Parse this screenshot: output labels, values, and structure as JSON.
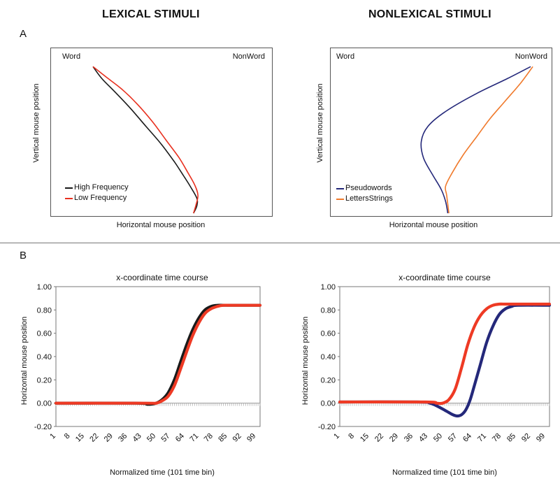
{
  "headers": {
    "left": "LEXICAL STIMULI",
    "right": "NONLEXICAL STIMULI"
  },
  "panel_labels": {
    "a": "A",
    "b": "B"
  },
  "colors": {
    "black": "#1a1a1a",
    "red": "#e8301f",
    "navy": "#24287a",
    "orange": "#f07a2c",
    "red_thick": "#ee3a24"
  },
  "chart_data": [
    {
      "type": "line",
      "corner_left": "Word",
      "corner_right": "NonWord",
      "xlabel": "Horizontal mouse position",
      "ylabel": "Vertical mouse position",
      "axes_visible": false,
      "series": [
        {
          "name": "High Frequency",
          "color": "#1a1a1a",
          "points": [
            [
              0.19,
              0.02
            ],
            [
              0.23,
              0.1
            ],
            [
              0.29,
              0.19
            ],
            [
              0.36,
              0.3
            ],
            [
              0.43,
              0.42
            ],
            [
              0.5,
              0.54
            ],
            [
              0.56,
              0.66
            ],
            [
              0.6,
              0.75
            ],
            [
              0.63,
              0.82
            ],
            [
              0.66,
              0.9
            ],
            [
              0.66,
              0.95
            ],
            [
              0.645,
              1.0
            ]
          ]
        },
        {
          "name": "Low Frequency",
          "color": "#e8301f",
          "points": [
            [
              0.19,
              0.02
            ],
            [
              0.25,
              0.09
            ],
            [
              0.32,
              0.17
            ],
            [
              0.39,
              0.27
            ],
            [
              0.46,
              0.39
            ],
            [
              0.52,
              0.51
            ],
            [
              0.58,
              0.63
            ],
            [
              0.62,
              0.73
            ],
            [
              0.65,
              0.81
            ],
            [
              0.665,
              0.88
            ],
            [
              0.655,
              0.95
            ],
            [
              0.645,
              1.0
            ]
          ]
        }
      ]
    },
    {
      "type": "line",
      "corner_left": "Word",
      "corner_right": "NonWord",
      "xlabel": "Horizontal mouse position",
      "ylabel": "Vertical mouse position",
      "axes_visible": false,
      "series": [
        {
          "name": "Pseudowords",
          "color": "#24287a",
          "points": [
            [
              0.905,
              0.02
            ],
            [
              0.8,
              0.1
            ],
            [
              0.66,
              0.2
            ],
            [
              0.52,
              0.32
            ],
            [
              0.44,
              0.42
            ],
            [
              0.41,
              0.52
            ],
            [
              0.42,
              0.63
            ],
            [
              0.46,
              0.74
            ],
            [
              0.5,
              0.84
            ],
            [
              0.52,
              0.92
            ],
            [
              0.53,
              1.0
            ]
          ]
        },
        {
          "name": "LettersStrings",
          "color": "#f07a2c",
          "points": [
            [
              0.915,
              0.02
            ],
            [
              0.86,
              0.13
            ],
            [
              0.79,
              0.25
            ],
            [
              0.72,
              0.37
            ],
            [
              0.66,
              0.49
            ],
            [
              0.6,
              0.61
            ],
            [
              0.55,
              0.73
            ],
            [
              0.52,
              0.82
            ],
            [
              0.525,
              0.88
            ],
            [
              0.535,
              1.0
            ]
          ]
        }
      ]
    },
    {
      "type": "line",
      "title": "x-coordinate time course",
      "xlabel": "Normalized time (101 time  bin)",
      "ylabel": "Horizontal mouse position",
      "ylim": [
        -0.2,
        1.0
      ],
      "xlim": [
        1,
        101
      ],
      "yticks": [
        "1.00",
        "0.80",
        "0.60",
        "0.40",
        "0.20",
        "0.00",
        "-0.20"
      ],
      "xticks": [
        "1",
        "8",
        "15",
        "22",
        "29",
        "36",
        "43",
        "50",
        "57",
        "64",
        "71",
        "78",
        "85",
        "92",
        "99"
      ],
      "series": [
        {
          "color": "#1a1a1a",
          "x": [
            1,
            40,
            46,
            50,
            53,
            56,
            59,
            62,
            65,
            68,
            71,
            74,
            77,
            80,
            83,
            86,
            89,
            101
          ],
          "y": [
            0.0,
            0.0,
            -0.01,
            0.0,
            0.03,
            0.09,
            0.2,
            0.35,
            0.5,
            0.63,
            0.73,
            0.8,
            0.83,
            0.84,
            0.84,
            0.84,
            0.84,
            0.84
          ]
        },
        {
          "color": "#ee3a24",
          "x": [
            1,
            45,
            50,
            53,
            56,
            59,
            62,
            65,
            68,
            71,
            74,
            77,
            80,
            83,
            86,
            89,
            101
          ],
          "y": [
            0.0,
            0.0,
            0.0,
            0.02,
            0.06,
            0.15,
            0.29,
            0.44,
            0.58,
            0.69,
            0.77,
            0.81,
            0.83,
            0.84,
            0.84,
            0.84,
            0.84
          ]
        }
      ]
    },
    {
      "type": "line",
      "title": "x-coordinate time course",
      "xlabel": "Normalized time (101 time  bin)",
      "ylabel": "Horizontal mouse position",
      "ylim": [
        -0.2,
        1.0
      ],
      "xlim": [
        1,
        101
      ],
      "yticks": [
        "1.00",
        "0.80",
        "0.60",
        "0.40",
        "0.20",
        "0.00",
        "-0.20"
      ],
      "xticks": [
        "1",
        "8",
        "15",
        "22",
        "29",
        "36",
        "43",
        "50",
        "57",
        "64",
        "71",
        "78",
        "85",
        "92",
        "99"
      ],
      "series": [
        {
          "color": "#24287a",
          "x": [
            1,
            38,
            44,
            48,
            52,
            55,
            57,
            59,
            61,
            63,
            65,
            68,
            71,
            74,
            77,
            80,
            83,
            86,
            101
          ],
          "y": [
            0.01,
            0.01,
            0.0,
            -0.03,
            -0.07,
            -0.1,
            -0.11,
            -0.1,
            -0.06,
            0.02,
            0.14,
            0.33,
            0.52,
            0.66,
            0.76,
            0.81,
            0.83,
            0.84,
            0.84
          ]
        },
        {
          "color": "#ee3a24",
          "x": [
            1,
            42,
            47,
            50,
            53,
            56,
            59,
            62,
            65,
            68,
            71,
            74,
            77,
            80,
            85,
            101
          ],
          "y": [
            0.01,
            0.01,
            0.0,
            0.0,
            0.03,
            0.12,
            0.3,
            0.5,
            0.65,
            0.75,
            0.81,
            0.84,
            0.85,
            0.85,
            0.85,
            0.85
          ]
        }
      ]
    }
  ]
}
